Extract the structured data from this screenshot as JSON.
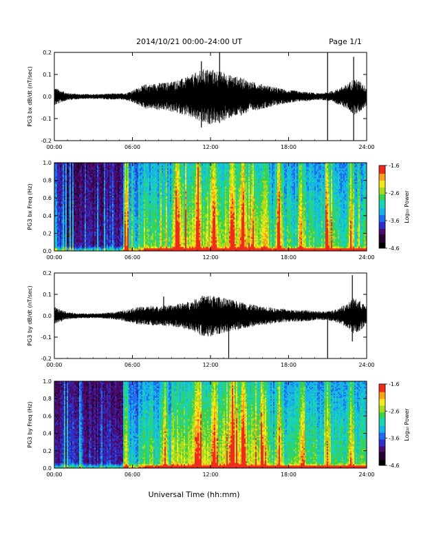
{
  "header": {
    "date_range": "2014/10/21  00:00–24:00 UT",
    "page": "Page 1/1"
  },
  "colors": {
    "trace": "#000000",
    "background": "#ffffff",
    "colormap": [
      "#000000",
      "#2a0033",
      "#4b0a6e",
      "#2d2fc4",
      "#1e6cf0",
      "#17b3e6",
      "#18d3b4",
      "#3ad24a",
      "#a6dc1e",
      "#f2e81b",
      "#f7a21a",
      "#ef2c1c"
    ]
  },
  "colorbar": {
    "label": "Log₁₀ Power",
    "ticks": [
      "-1.6",
      "-2.6",
      "-3.6",
      "-4.6"
    ],
    "range": [
      -4.6,
      -1.6
    ]
  },
  "x_axis": {
    "tick_labels": [
      "00:00",
      "06:00",
      "12:00",
      "18:00",
      "24:00"
    ],
    "title": "Universal Time (hh:mm)"
  },
  "chart_data": [
    {
      "type": "line",
      "ylabel": "PG3 bx dB/dt (nT/sec)",
      "xlim": [
        0,
        24
      ],
      "ylim": [
        -0.2,
        0.2
      ],
      "yticks": [
        "0.2",
        "0.1",
        "0.0",
        "-0.1",
        "-0.2"
      ],
      "envelope": {
        "x": [
          0,
          0.5,
          1,
          1.5,
          2,
          2.5,
          3,
          3.5,
          4,
          4.5,
          5,
          5.5,
          6,
          6.5,
          7,
          7.5,
          8,
          8.5,
          9,
          9.5,
          10,
          10.5,
          11,
          11.5,
          12,
          12.5,
          13,
          13.5,
          14,
          14.5,
          15,
          15.5,
          16,
          16.5,
          17,
          17.5,
          18,
          18.5,
          19,
          19.5,
          20,
          20.5,
          21,
          21.5,
          22,
          22.5,
          23,
          23.5,
          24
        ],
        "amplitude": [
          0.03,
          0.02,
          0.012,
          0.01,
          0.008,
          0.008,
          0.008,
          0.008,
          0.01,
          0.01,
          0.01,
          0.012,
          0.02,
          0.03,
          0.04,
          0.04,
          0.045,
          0.045,
          0.05,
          0.055,
          0.06,
          0.07,
          0.08,
          0.09,
          0.09,
          0.085,
          0.08,
          0.07,
          0.065,
          0.06,
          0.05,
          0.045,
          0.04,
          0.035,
          0.03,
          0.025,
          0.02,
          0.02,
          0.015,
          0.015,
          0.012,
          0.01,
          0.015,
          0.02,
          0.03,
          0.04,
          0.06,
          0.05,
          0.03
        ]
      },
      "spikes": [
        {
          "x": 21.0,
          "high": 0.2,
          "low": -0.2
        },
        {
          "x": 23.0,
          "high": 0.18,
          "low": -0.2
        },
        {
          "x": 12.7,
          "high": 0.2,
          "low": -0.12
        },
        {
          "x": 11.3,
          "high": 0.16,
          "low": -0.14
        }
      ]
    },
    {
      "type": "heatmap",
      "ylabel": "PG3 bx Freq (Hz)",
      "xlim": [
        0,
        24
      ],
      "ylim": [
        0,
        1.0
      ],
      "yticks": [
        "1.0",
        "0.8",
        "0.6",
        "0.4",
        "0.2",
        "0.0"
      ],
      "value_range": [
        -4.6,
        -1.6
      ],
      "band_hours": [
        5.5,
        9.5,
        11.0,
        12.3,
        13.7,
        14.5,
        16.2,
        17.3,
        19.0,
        21.0,
        22.8
      ]
    },
    {
      "type": "line",
      "ylabel": "PG3 by dB/dt (nT/sec)",
      "xlim": [
        0,
        24
      ],
      "ylim": [
        -0.2,
        0.2
      ],
      "yticks": [
        "0.2",
        "0.1",
        "0.0",
        "-0.1",
        "-0.2"
      ],
      "envelope": {
        "x": [
          0,
          0.5,
          1,
          1.5,
          2,
          2.5,
          3,
          3.5,
          4,
          4.5,
          5,
          5.5,
          6,
          6.5,
          7,
          7.5,
          8,
          8.5,
          9,
          9.5,
          10,
          10.5,
          11,
          11.5,
          12,
          12.5,
          13,
          13.5,
          14,
          14.5,
          15,
          15.5,
          16,
          16.5,
          17,
          17.5,
          18,
          18.5,
          19,
          19.5,
          20,
          20.5,
          21,
          21.5,
          22,
          22.5,
          23,
          23.5,
          24
        ],
        "amplitude": [
          0.03,
          0.02,
          0.012,
          0.01,
          0.008,
          0.008,
          0.008,
          0.008,
          0.01,
          0.012,
          0.015,
          0.02,
          0.025,
          0.03,
          0.03,
          0.035,
          0.03,
          0.035,
          0.035,
          0.04,
          0.045,
          0.05,
          0.06,
          0.07,
          0.07,
          0.065,
          0.06,
          0.055,
          0.05,
          0.045,
          0.04,
          0.035,
          0.03,
          0.03,
          0.025,
          0.025,
          0.02,
          0.02,
          0.02,
          0.018,
          0.015,
          0.015,
          0.015,
          0.02,
          0.03,
          0.04,
          0.06,
          0.05,
          0.03
        ]
      },
      "spikes": [
        {
          "x": 13.4,
          "high": 0.05,
          "low": -0.2
        },
        {
          "x": 21.0,
          "high": 0.02,
          "low": -0.2
        },
        {
          "x": 22.9,
          "high": 0.19,
          "low": -0.12
        },
        {
          "x": 8.4,
          "high": 0.09,
          "low": -0.03
        }
      ]
    },
    {
      "type": "heatmap",
      "ylabel": "PG3 by Freq (Hz)",
      "xlim": [
        0,
        24
      ],
      "ylim": [
        0,
        1.0
      ],
      "yticks": [
        "1.0",
        "0.8",
        "0.6",
        "0.4",
        "0.2",
        "0.0"
      ],
      "value_range": [
        -4.6,
        -1.6
      ],
      "band_hours": [
        5.5,
        8.5,
        11.0,
        12.3,
        13.7,
        14.5,
        16.2,
        17.3,
        19.0,
        21.0,
        22.8
      ]
    }
  ]
}
